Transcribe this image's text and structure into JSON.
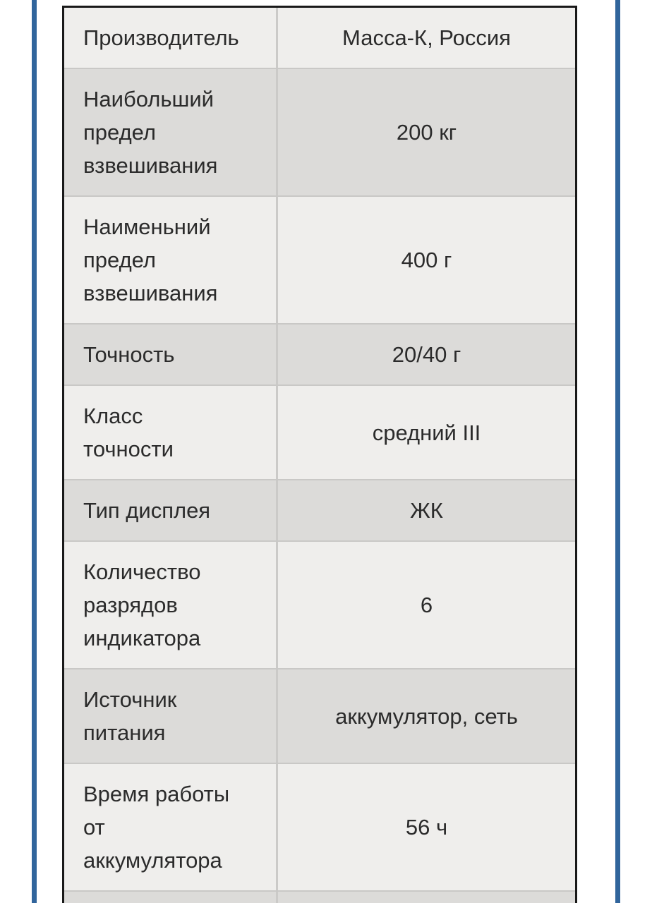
{
  "page": {
    "background": "#ffffff",
    "accent_stripe_color": "#31659c",
    "table_border_color": "#191919",
    "row_light_color": "#efeeec",
    "row_gray_color": "#dcdbd9",
    "divider_color": "#c9c8c6",
    "text_color": "#2b2b2b"
  },
  "spec_table": {
    "rows": [
      {
        "label": "Производитель",
        "value": "Масса-К, Россия"
      },
      {
        "label": "Наибольший\nпредел\nвзвешивания",
        "value": "200 кг"
      },
      {
        "label": "Наименьний\nпредел\nвзвешивания",
        "value": "400 г"
      },
      {
        "label": "Точность",
        "value": "20/40 г"
      },
      {
        "label": "Класс\nточности",
        "value": "средний III"
      },
      {
        "label": "Тип дисплея",
        "value": "ЖК"
      },
      {
        "label": "Количество\nразрядов\nиндикатора",
        "value": "6"
      },
      {
        "label": "Источник\nпитания",
        "value": "аккумулятор, сеть"
      },
      {
        "label": "Время работы\nот\nаккумулятора",
        "value": "56 ч"
      },
      {
        "label": "",
        "value": ""
      }
    ]
  }
}
